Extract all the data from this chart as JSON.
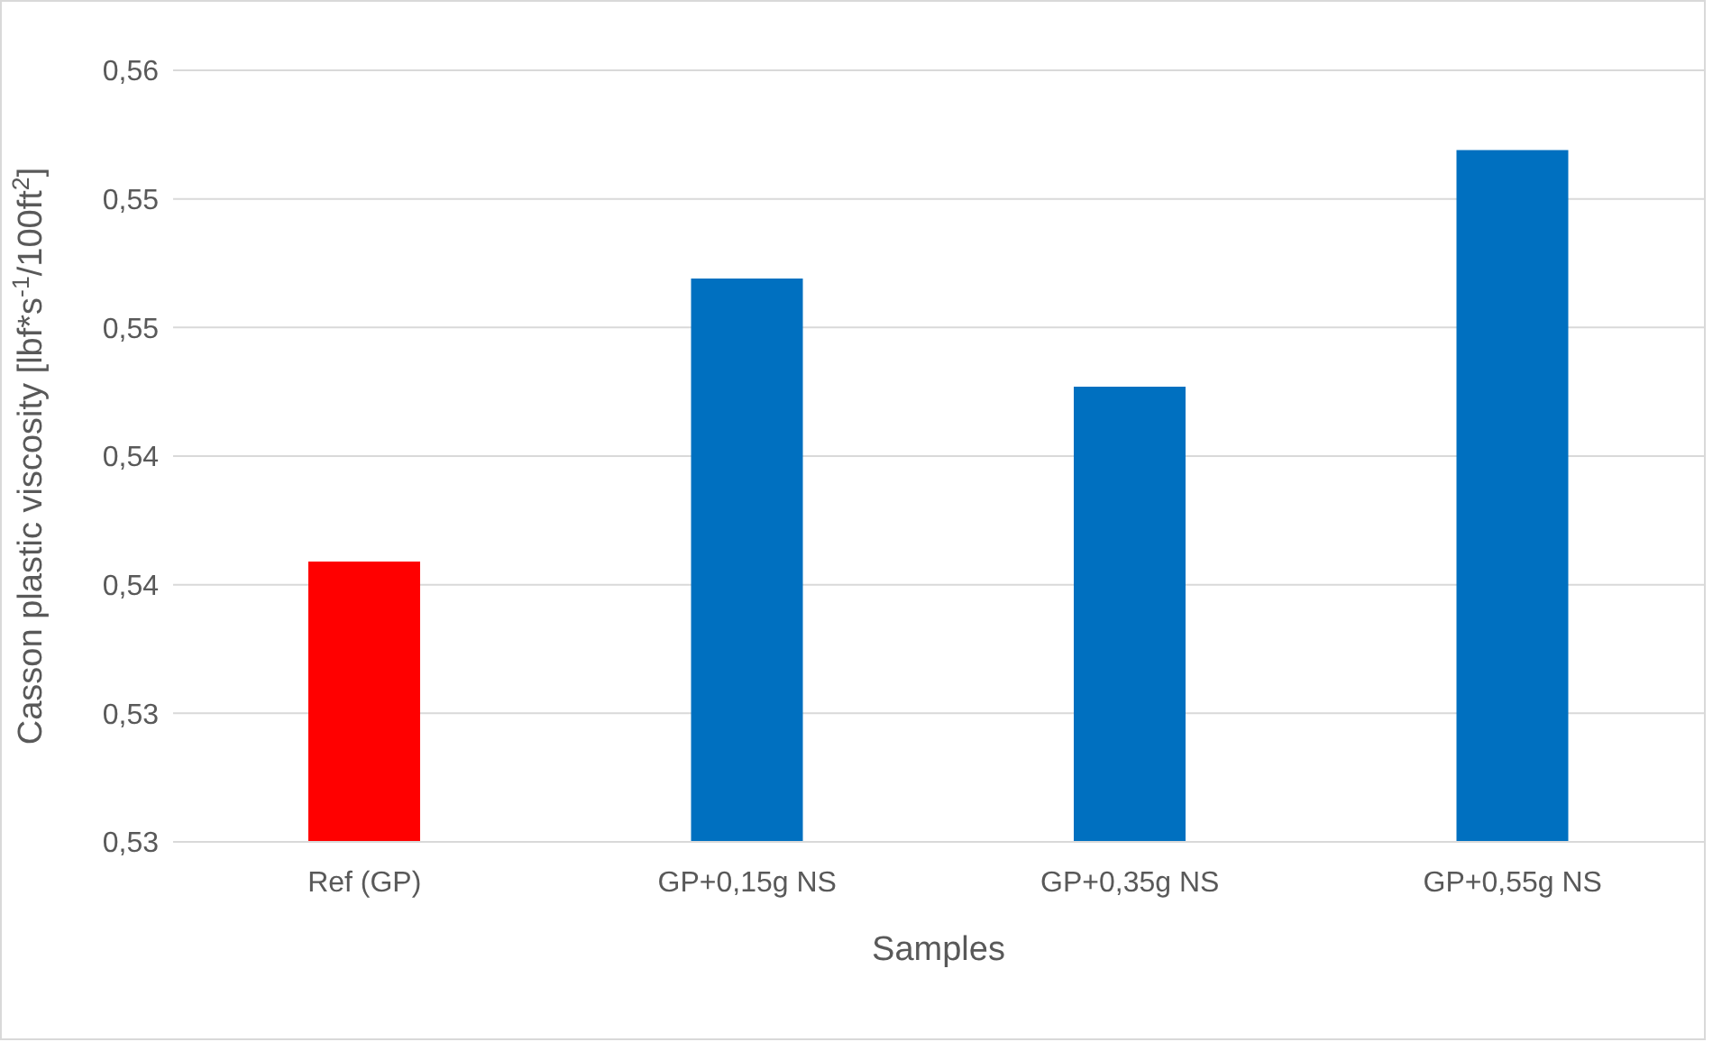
{
  "chart_data": {
    "type": "bar",
    "xlabel": "Samples",
    "ylabel": "Casson plastic viscosity [lbf*s$^{-1}$/100ft$^{2}$]",
    "categories": [
      "Ref (GP)",
      "GP+0,15g NS",
      "GP+0,35g NS",
      "GP+0,55g NS"
    ],
    "values": [
      0.5409,
      0.5519,
      0.5477,
      0.5569
    ],
    "colors": [
      "#ff0000",
      "#0070c0",
      "#0070c0",
      "#0070c0"
    ],
    "ylim": [
      0.53,
      0.56
    ],
    "yticks": [
      {
        "value": 0.53,
        "label": "0,53"
      },
      {
        "value": 0.535,
        "label": "0,53"
      },
      {
        "value": 0.54,
        "label": "0,54"
      },
      {
        "value": 0.545,
        "label": "0,54"
      },
      {
        "value": 0.55,
        "label": "0,55"
      },
      {
        "value": 0.555,
        "label": "0,55"
      },
      {
        "value": 0.56,
        "label": "0,56"
      }
    ],
    "grid": "y"
  }
}
